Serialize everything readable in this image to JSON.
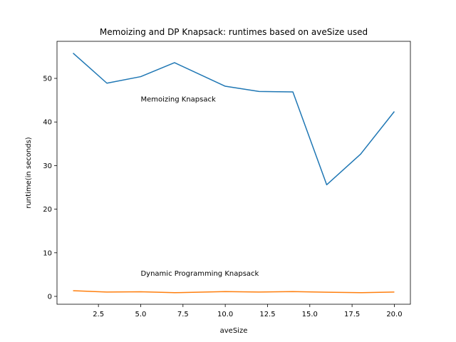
{
  "chart_data": {
    "type": "line",
    "title": "Memoizing and DP Knapsack: runtimes based on aveSize used",
    "xlabel": "aveSize",
    "ylabel": "runtime(in seconds)",
    "xlim": [
      0.05,
      20.95
    ],
    "ylim": [
      -1.8,
      58.5
    ],
    "xticks": [
      2.5,
      5.0,
      7.5,
      10.0,
      12.5,
      15.0,
      17.5,
      20.0
    ],
    "xtick_labels": [
      "2.5",
      "5.0",
      "7.5",
      "10.0",
      "12.5",
      "15.0",
      "17.5",
      "20.0"
    ],
    "yticks": [
      0,
      10,
      20,
      30,
      40,
      50
    ],
    "ytick_labels": [
      "0",
      "10",
      "20",
      "30",
      "40",
      "50"
    ],
    "grid": false,
    "x": [
      1,
      3,
      5,
      7,
      10,
      12,
      14,
      16,
      18,
      20
    ],
    "series": [
      {
        "values": [
          55.8,
          48.9,
          50.4,
          53.6,
          48.2,
          47.0,
          46.9,
          25.6,
          32.6,
          42.4
        ],
        "color": "#1f77b4"
      },
      {
        "values": [
          1.3,
          1.0,
          1.05,
          0.85,
          1.1,
          1.0,
          1.1,
          0.95,
          0.85,
          1.0
        ],
        "color": "#ff7f0e"
      }
    ],
    "annotations": [
      {
        "text": "Memoizing Knapsack",
        "x": 5.0,
        "y": 44.7
      },
      {
        "text": "Dynamic Programming Knapsack",
        "x": 5.0,
        "y": 4.7
      }
    ]
  }
}
